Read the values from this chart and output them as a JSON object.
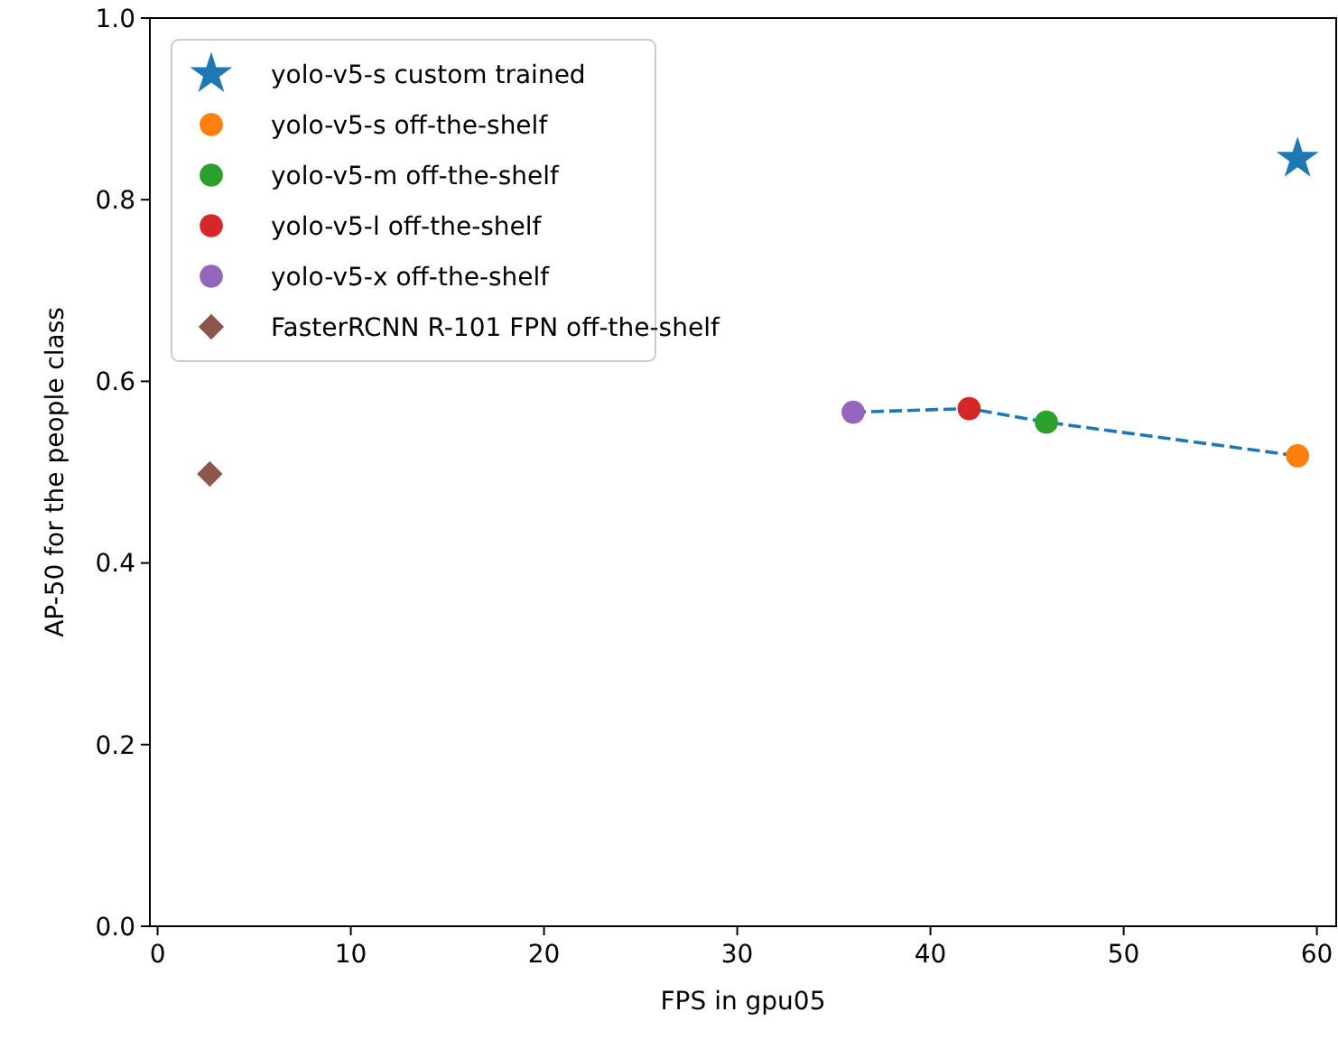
{
  "chart_data": {
    "type": "scatter",
    "xlabel": "FPS in gpu05",
    "ylabel": "AP-50 for the people class",
    "xlim": [
      -0.4,
      61
    ],
    "ylim": [
      0,
      1
    ],
    "xticks": [
      0,
      10,
      20,
      30,
      40,
      50,
      60
    ],
    "yticks": [
      {
        "value": 0,
        "label": "0.0"
      },
      {
        "value": 0.2,
        "label": "0.2"
      },
      {
        "value": 0.4,
        "label": "0.4"
      },
      {
        "value": 0.6,
        "label": "0.6"
      },
      {
        "value": 0.8,
        "label": "0.8"
      },
      {
        "value": 1,
        "label": "1.0"
      }
    ],
    "grid": false,
    "legend": "top left",
    "series": [
      {
        "type": "line",
        "line_style": "dashed",
        "marker": "none",
        "color": "#1f77b4",
        "x": [
          36,
          42,
          46,
          59
        ],
        "values": [
          0.566,
          0.57,
          0.555,
          0.518
        ]
      },
      {
        "name": "yolo-v5-s custom trained",
        "marker": "star",
        "color": "#1f77b4",
        "x": [
          59
        ],
        "values": [
          0.845
        ]
      },
      {
        "name": "yolo-v5-s off-the-shelf",
        "marker": "circle",
        "color": "#ff7f0e",
        "x": [
          59
        ],
        "values": [
          0.518
        ]
      },
      {
        "name": "yolo-v5-m off-the-shelf",
        "marker": "circle",
        "color": "#2ca02c",
        "x": [
          46
        ],
        "values": [
          0.555
        ]
      },
      {
        "name": "yolo-v5-l off-the-shelf",
        "marker": "circle",
        "color": "#d62728",
        "x": [
          42
        ],
        "values": [
          0.57
        ]
      },
      {
        "name": "yolo-v5-x off-the-shelf",
        "marker": "circle",
        "color": "#9467bd",
        "x": [
          36
        ],
        "values": [
          0.566
        ]
      },
      {
        "name": "FasterRCNN R-101 FPN off-the-shelf",
        "marker": "diamond",
        "color": "#8c564b",
        "x": [
          2.7
        ],
        "values": [
          0.498
        ]
      }
    ]
  }
}
